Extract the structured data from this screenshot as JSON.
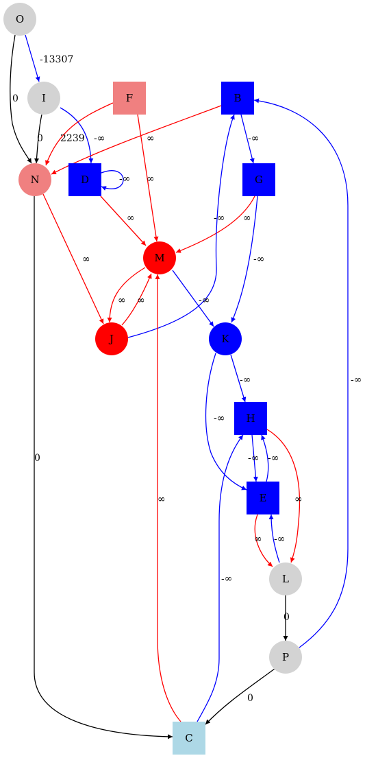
{
  "colors": {
    "gray": "#d3d3d3",
    "light_red": "#f08080",
    "red": "#ff0000",
    "blue": "#0000ff",
    "light_blue": "#add8e6",
    "black": "#000000"
  },
  "nodes": [
    {
      "id": "O",
      "shape": "circle",
      "fill": "#d3d3d3"
    },
    {
      "id": "I",
      "shape": "circle",
      "fill": "#d3d3d3"
    },
    {
      "id": "F",
      "shape": "square",
      "fill": "#f08080"
    },
    {
      "id": "B",
      "shape": "square",
      "fill": "#0000ff"
    },
    {
      "id": "N",
      "shape": "circle",
      "fill": "#f08080"
    },
    {
      "id": "D",
      "shape": "square",
      "fill": "#0000ff"
    },
    {
      "id": "G",
      "shape": "square",
      "fill": "#0000ff"
    },
    {
      "id": "M",
      "shape": "circle",
      "fill": "#ff0000"
    },
    {
      "id": "J",
      "shape": "circle",
      "fill": "#ff0000"
    },
    {
      "id": "K",
      "shape": "circle",
      "fill": "#0000ff"
    },
    {
      "id": "H",
      "shape": "square",
      "fill": "#0000ff"
    },
    {
      "id": "E",
      "shape": "square",
      "fill": "#0000ff"
    },
    {
      "id": "L",
      "shape": "circle",
      "fill": "#d3d3d3"
    },
    {
      "id": "P",
      "shape": "circle",
      "fill": "#d3d3d3"
    },
    {
      "id": "C",
      "shape": "square",
      "fill": "#add8e6"
    }
  ],
  "edges": [
    {
      "from": "O",
      "to": "I",
      "label": "-13307",
      "color": "#0000ff"
    },
    {
      "from": "O",
      "to": "N",
      "label": "0",
      "color": "#000000"
    },
    {
      "from": "I",
      "to": "N",
      "label": "0",
      "color": "#000000"
    },
    {
      "from": "I",
      "to": "D",
      "label": "-∞",
      "color": "#0000ff"
    },
    {
      "from": "F",
      "to": "N",
      "label": "2239",
      "color": "#ff0000"
    },
    {
      "from": "F",
      "to": "M",
      "label": "∞",
      "color": "#ff0000"
    },
    {
      "from": "B",
      "to": "N",
      "label": "∞",
      "color": "#ff0000"
    },
    {
      "from": "B",
      "to": "G",
      "label": "-∞",
      "color": "#0000ff"
    },
    {
      "from": "D",
      "to": "D",
      "label": "-∞",
      "color": "#0000ff"
    },
    {
      "from": "D",
      "to": "M",
      "label": "∞",
      "color": "#ff0000"
    },
    {
      "from": "G",
      "to": "M",
      "label": "∞",
      "color": "#ff0000"
    },
    {
      "from": "G",
      "to": "K",
      "label": "-∞",
      "color": "#0000ff"
    },
    {
      "from": "N",
      "to": "J",
      "label": "∞",
      "color": "#ff0000"
    },
    {
      "from": "N",
      "to": "C",
      "label": "0",
      "color": "#000000"
    },
    {
      "from": "M",
      "to": "J",
      "label": "∞",
      "color": "#ff0000"
    },
    {
      "from": "J",
      "to": "M",
      "label": "∞",
      "color": "#ff0000"
    },
    {
      "from": "M",
      "to": "K",
      "label": "-∞",
      "color": "#0000ff"
    },
    {
      "from": "J",
      "to": "B",
      "label": "-∞",
      "color": "#0000ff"
    },
    {
      "from": "K",
      "to": "H",
      "label": "-∞",
      "color": "#0000ff"
    },
    {
      "from": "K",
      "to": "E",
      "label": "-∞",
      "color": "#0000ff"
    },
    {
      "from": "H",
      "to": "E",
      "label": "-∞",
      "color": "#0000ff"
    },
    {
      "from": "E",
      "to": "H",
      "label": "-∞",
      "color": "#0000ff"
    },
    {
      "from": "H",
      "to": "L",
      "label": "∞",
      "color": "#ff0000"
    },
    {
      "from": "E",
      "to": "L",
      "label": "∞",
      "color": "#ff0000"
    },
    {
      "from": "L",
      "to": "E",
      "label": "-∞",
      "color": "#0000ff"
    },
    {
      "from": "L",
      "to": "P",
      "label": "0",
      "color": "#000000"
    },
    {
      "from": "P",
      "to": "B",
      "label": "-∞",
      "color": "#0000ff"
    },
    {
      "from": "P",
      "to": "C",
      "label": "0",
      "color": "#000000"
    },
    {
      "from": "C",
      "to": "M",
      "label": "∞",
      "color": "#ff0000"
    },
    {
      "from": "C",
      "to": "H",
      "label": "-∞",
      "color": "#0000ff"
    }
  ]
}
